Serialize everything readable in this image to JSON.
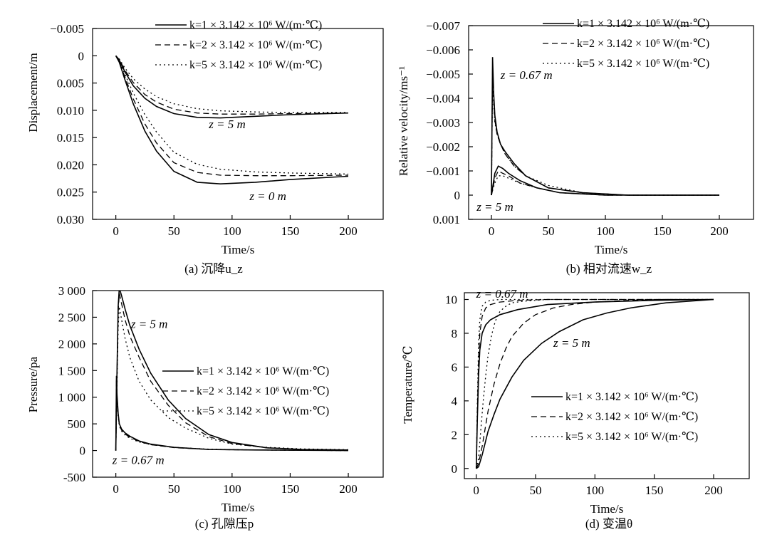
{
  "figure": {
    "legend_entries": [
      "k=1 × 3.142 × 10⁶ W/(m·℃)",
      "k=2 × 3.142 × 10⁶ W/(m·℃)",
      "k=5 × 3.142 × 10⁶ W/(m·℃)"
    ]
  },
  "chart_data": [
    {
      "type": "line",
      "caption": "(a) 沉降u_z",
      "xlabel": "Time/s",
      "ylabel": "Displacement/m",
      "xlim": [
        -20,
        230
      ],
      "ylim": [
        -0.005,
        0.03
      ],
      "y_inverted": true,
      "xticks": [
        0,
        50,
        100,
        150,
        200
      ],
      "xtick_labels": [
        "0",
        "50",
        "100",
        "150",
        "200"
      ],
      "yticks": [
        -0.005,
        0,
        0.005,
        0.01,
        0.015,
        0.02,
        0.025,
        0.03
      ],
      "ytick_labels": [
        "−0.005",
        "0",
        "0.005",
        "0.010",
        "0.015",
        "0.020",
        "0.025",
        "0.030"
      ],
      "legend_position": "top-right",
      "annotations": [
        {
          "text": "z = 5 m",
          "x": 80,
          "y": 0.0133
        },
        {
          "text": "z = 0 m",
          "x": 115,
          "y": 0.0265
        }
      ],
      "series": [
        {
          "name": "k=1 × 3.142 × 10⁶ W/(m·℃)",
          "style": "solid",
          "x": [
            0,
            3,
            8,
            15,
            25,
            35,
            50,
            70,
            90,
            120,
            150,
            200
          ],
          "y": [
            0,
            0.0008,
            0.003,
            0.0055,
            0.0078,
            0.0093,
            0.0106,
            0.0113,
            0.0114,
            0.0111,
            0.0108,
            0.0105
          ]
        },
        {
          "name": "k=2 × 3.142 × 10⁶ W/(m·℃)",
          "style": "dashed",
          "x": [
            0,
            3,
            8,
            15,
            25,
            35,
            50,
            70,
            90,
            120,
            150,
            200
          ],
          "y": [
            0,
            0.0007,
            0.0027,
            0.0049,
            0.0071,
            0.0085,
            0.0098,
            0.0105,
            0.0107,
            0.0107,
            0.0106,
            0.0105
          ]
        },
        {
          "name": "k=5 × 3.142 × 10⁶ W/(m·℃)",
          "style": "dotted",
          "x": [
            0,
            3,
            8,
            15,
            25,
            35,
            50,
            70,
            90,
            120,
            150,
            200
          ],
          "y": [
            0,
            0.0006,
            0.0023,
            0.0042,
            0.0061,
            0.0075,
            0.0088,
            0.0097,
            0.0101,
            0.0103,
            0.0104,
            0.0104
          ]
        },
        {
          "name": "k=1 × 3.142 × 10⁶ W/(m·℃)",
          "style": "solid",
          "x": [
            0,
            3,
            8,
            15,
            25,
            35,
            50,
            70,
            90,
            120,
            150,
            200
          ],
          "y": [
            0,
            0.0012,
            0.0045,
            0.0088,
            0.0138,
            0.0175,
            0.0212,
            0.0232,
            0.0235,
            0.0232,
            0.0227,
            0.0221
          ]
        },
        {
          "name": "k=2 × 3.142 × 10⁶ W/(m·℃)",
          "style": "dashed",
          "x": [
            0,
            3,
            8,
            15,
            25,
            35,
            50,
            70,
            90,
            120,
            150,
            200
          ],
          "y": [
            0,
            0.0011,
            0.004,
            0.0079,
            0.0125,
            0.016,
            0.0196,
            0.0214,
            0.0219,
            0.022,
            0.022,
            0.0219
          ]
        },
        {
          "name": "k=5 × 3.142 × 10⁶ W/(m·℃)",
          "style": "dotted",
          "x": [
            0,
            3,
            8,
            15,
            25,
            35,
            50,
            70,
            90,
            120,
            150,
            200
          ],
          "y": [
            0,
            0.001,
            0.0035,
            0.0068,
            0.0108,
            0.014,
            0.0177,
            0.0199,
            0.0208,
            0.0213,
            0.0215,
            0.0217
          ]
        }
      ]
    },
    {
      "type": "line",
      "caption": "(b) 相对流速w_z",
      "xlabel": "Time/s",
      "ylabel": "Relative velocity/ms⁻¹",
      "xlim": [
        -20,
        230
      ],
      "ylim": [
        -0.007,
        0.001
      ],
      "y_inverted": true,
      "xticks": [
        0,
        50,
        100,
        150,
        200
      ],
      "xtick_labels": [
        "0",
        "50",
        "100",
        "150",
        "200"
      ],
      "yticks": [
        -0.007,
        -0.006,
        -0.005,
        -0.004,
        -0.003,
        -0.002,
        -0.001,
        0,
        0.001
      ],
      "ytick_labels": [
        "−0.007",
        "−0.006",
        "−0.005",
        "−0.004",
        "−0.003",
        "−0.002",
        "−0.001",
        "0",
        "0.001"
      ],
      "legend_position": "top-right",
      "annotations": [
        {
          "text": "z = 0.67 m",
          "x": 8,
          "y": -0.0048
        },
        {
          "text": "z = 5 m",
          "x": -13,
          "y": 0.00065
        }
      ],
      "series": [
        {
          "name": "k=1 × 3.142 × 10⁶ W/(m·℃)",
          "style": "solid",
          "x": [
            0,
            1,
            2,
            3,
            5,
            8,
            12,
            20,
            30,
            50,
            80,
            120,
            200
          ],
          "y": [
            0,
            -0.0057,
            -0.0042,
            -0.0033,
            -0.0026,
            -0.0021,
            -0.0018,
            -0.0013,
            -0.0008,
            -0.0003,
            -0.0001,
            0,
            0
          ]
        },
        {
          "name": "k=2 × 3.142 × 10⁶ W/(m·℃)",
          "style": "dashed",
          "x": [
            0,
            1,
            2,
            3,
            5,
            8,
            12,
            20,
            30,
            50,
            80,
            120,
            200
          ],
          "y": [
            0,
            -0.0052,
            -0.0039,
            -0.0031,
            -0.0025,
            -0.0021,
            -0.0017,
            -0.0012,
            -0.0008,
            -0.0003,
            -0.0001,
            0,
            0
          ]
        },
        {
          "name": "k=5 × 3.142 × 10⁶ W/(m·℃)",
          "style": "dotted",
          "x": [
            0,
            1,
            2,
            3,
            5,
            8,
            12,
            20,
            30,
            50,
            80,
            120,
            200
          ],
          "y": [
            0,
            -0.0048,
            -0.0037,
            -0.003,
            -0.0025,
            -0.0021,
            -0.0017,
            -0.0012,
            -0.0008,
            -0.0004,
            -0.0001,
            0,
            0
          ]
        },
        {
          "name": "k=1 × 3.142 × 10⁶ W/(m·℃)",
          "style": "solid",
          "x": [
            0,
            1,
            3,
            6,
            10,
            15,
            25,
            40,
            60,
            100,
            200
          ],
          "y": [
            0,
            -0.0003,
            -0.0009,
            -0.0012,
            -0.0011,
            -0.0009,
            -0.0006,
            -0.0003,
            -0.0001,
            0,
            0
          ]
        },
        {
          "name": "k=2 × 3.142 × 10⁶ W/(m·℃)",
          "style": "dashed",
          "x": [
            0,
            1,
            3,
            6,
            10,
            15,
            25,
            40,
            60,
            100,
            200
          ],
          "y": [
            0,
            -0.0002,
            -0.0007,
            -0.001,
            -0.0009,
            -0.0008,
            -0.0005,
            -0.0003,
            -0.0001,
            0,
            0
          ]
        },
        {
          "name": "k=5 × 3.142 × 10⁶ W/(m·℃)",
          "style": "dotted",
          "x": [
            0,
            1,
            3,
            6,
            10,
            15,
            25,
            40,
            60,
            100,
            200
          ],
          "y": [
            0,
            -0.0002,
            -0.0005,
            -0.0008,
            -0.0008,
            -0.0007,
            -0.0005,
            -0.0003,
            -0.0001,
            0,
            0
          ]
        }
      ]
    },
    {
      "type": "line",
      "caption": "(c) 孔隙压p",
      "xlabel": "Time/s",
      "ylabel": "Pressure/pa",
      "xlim": [
        -20,
        230
      ],
      "ylim": [
        -500,
        3000
      ],
      "y_inverted": false,
      "xticks": [
        0,
        50,
        100,
        150,
        200
      ],
      "xtick_labels": [
        "0",
        "50",
        "100",
        "150",
        "200"
      ],
      "yticks": [
        -500,
        0,
        500,
        1000,
        1500,
        2000,
        2500,
        3000
      ],
      "ytick_labels": [
        "-500",
        "0",
        "500",
        "1 000",
        "1 500",
        "2 000",
        "2 500",
        "3 000"
      ],
      "legend_position": "center-right",
      "annotations": [
        {
          "text": "z = 5 m",
          "x": 13,
          "y": 2300
        },
        {
          "text": "z = 0.67 m",
          "x": -3,
          "y": -250
        }
      ],
      "series": [
        {
          "name": "k=1 × 3.142 × 10⁶ W/(m·℃)",
          "style": "solid",
          "x": [
            0,
            1,
            2,
            3,
            5,
            8,
            12,
            20,
            30,
            45,
            60,
            80,
            100,
            130,
            160,
            200
          ],
          "y": [
            0,
            1500,
            2700,
            3050,
            2900,
            2650,
            2350,
            1900,
            1450,
            950,
            600,
            300,
            150,
            50,
            20,
            10
          ]
        },
        {
          "name": "k=2 × 3.142 × 10⁶ W/(m·℃)",
          "style": "dashed",
          "x": [
            0,
            1,
            2,
            3,
            5,
            8,
            12,
            20,
            30,
            45,
            60,
            80,
            100,
            130,
            160,
            200
          ],
          "y": [
            0,
            1400,
            2600,
            2950,
            2750,
            2450,
            2150,
            1750,
            1300,
            850,
            520,
            260,
            130,
            50,
            20,
            10
          ]
        },
        {
          "name": "k=5 × 3.142 × 10⁶ W/(m·℃)",
          "style": "dotted",
          "x": [
            0,
            1,
            2,
            3,
            5,
            8,
            12,
            20,
            30,
            45,
            60,
            80,
            100,
            130,
            160,
            200
          ],
          "y": [
            0,
            1200,
            2300,
            2700,
            2450,
            2100,
            1750,
            1300,
            950,
            620,
            420,
            230,
            120,
            60,
            30,
            15
          ]
        },
        {
          "name": "k=1 × 3.142 × 10⁶ W/(m·℃)",
          "style": "solid",
          "x": [
            0,
            0.5,
            1,
            2,
            3,
            5,
            8,
            12,
            20,
            30,
            50,
            80,
            120,
            200
          ],
          "y": [
            0,
            1400,
            1050,
            700,
            500,
            400,
            330,
            270,
            180,
            120,
            60,
            20,
            10,
            0
          ]
        },
        {
          "name": "k=2 × 3.142 × 10⁶ W/(m·℃)",
          "style": "dashed",
          "x": [
            0,
            0.5,
            1,
            2,
            3,
            5,
            8,
            12,
            20,
            30,
            50,
            80,
            120,
            200
          ],
          "y": [
            0,
            1350,
            1000,
            680,
            480,
            380,
            310,
            250,
            170,
            110,
            55,
            20,
            10,
            0
          ]
        },
        {
          "name": "k=5 × 3.142 × 10⁶ W/(m·℃)",
          "style": "dotted",
          "x": [
            0,
            0.5,
            1,
            2,
            3,
            5,
            8,
            12,
            20,
            30,
            50,
            80,
            120,
            200
          ],
          "y": [
            0,
            1300,
            950,
            650,
            460,
            360,
            290,
            230,
            160,
            110,
            60,
            25,
            10,
            0
          ]
        }
      ]
    },
    {
      "type": "line",
      "caption": "(d) 变温θ",
      "xlabel": "Time/s",
      "ylabel": "Temperature/℃",
      "xlim": [
        -10,
        230
      ],
      "ylim": [
        -0.6,
        10.4
      ],
      "y_inverted": false,
      "xticks": [
        0,
        50,
        100,
        150,
        200
      ],
      "xtick_labels": [
        "0",
        "50",
        "100",
        "150",
        "200"
      ],
      "yticks": [
        0,
        2,
        4,
        6,
        8,
        10
      ],
      "ytick_labels": [
        "0",
        "2",
        "4",
        "6",
        "8",
        "10"
      ],
      "legend_position": "lower-right",
      "annotations": [
        {
          "text": "z = 0.67 m",
          "x": 0,
          "y": 10.1
        },
        {
          "text": "z = 5 m",
          "x": 65,
          "y": 7.2
        }
      ],
      "series": [
        {
          "name": "k=1 × 3.142 × 10⁶ W/(m·℃)",
          "style": "solid",
          "x": [
            0,
            1,
            2,
            3,
            5,
            8,
            12,
            20,
            35,
            60,
            100,
            150,
            200
          ],
          "y": [
            0,
            3,
            5.5,
            7,
            8,
            8.5,
            8.8,
            9.1,
            9.4,
            9.7,
            9.85,
            9.95,
            10
          ]
        },
        {
          "name": "k=2 × 3.142 × 10⁶ W/(m·℃)",
          "style": "dashed",
          "x": [
            0,
            1,
            2,
            3,
            5,
            8,
            12,
            20,
            35,
            60,
            100,
            150,
            200
          ],
          "y": [
            0,
            3.5,
            6.5,
            8,
            9,
            9.5,
            9.7,
            9.85,
            9.95,
            10,
            10,
            10,
            10
          ]
        },
        {
          "name": "k=5 × 3.142 × 10⁶ W/(m·℃)",
          "style": "dotted",
          "x": [
            0,
            1,
            2,
            3,
            5,
            8,
            12,
            20,
            35,
            60,
            100,
            150,
            200
          ],
          "y": [
            0,
            4,
            7.5,
            8.8,
            9.6,
            9.85,
            9.95,
            10,
            10,
            10,
            10,
            10,
            10
          ]
        },
        {
          "name": "k=1 × 3.142 × 10⁶ W/(m·℃)",
          "style": "solid",
          "x": [
            0,
            2,
            5,
            10,
            15,
            20,
            30,
            40,
            55,
            70,
            90,
            110,
            130,
            160,
            200
          ],
          "y": [
            0,
            0.1,
            0.8,
            2.2,
            3.2,
            4.1,
            5.4,
            6.4,
            7.4,
            8.1,
            8.8,
            9.2,
            9.5,
            9.8,
            10
          ]
        },
        {
          "name": "k=2 × 3.142 × 10⁶ W/(m·℃)",
          "style": "dashed",
          "x": [
            0,
            2,
            5,
            10,
            15,
            20,
            25,
            30,
            40,
            50,
            65,
            80,
            100,
            130,
            160,
            200
          ],
          "y": [
            0,
            0.3,
            1.3,
            3.4,
            5,
            6.2,
            7.1,
            7.8,
            8.6,
            9.1,
            9.5,
            9.7,
            9.85,
            9.95,
            10,
            10
          ]
        },
        {
          "name": "k=5 × 3.142 × 10⁶ W/(m·℃)",
          "style": "dotted",
          "x": [
            0,
            2,
            4,
            6,
            8,
            10,
            13,
            16,
            20,
            25,
            30,
            40,
            60,
            100,
            200
          ],
          "y": [
            0,
            0.6,
            2.4,
            4.1,
            5.5,
            6.7,
            7.9,
            8.7,
            9.3,
            9.6,
            9.8,
            9.9,
            10,
            10,
            10
          ]
        }
      ]
    }
  ]
}
